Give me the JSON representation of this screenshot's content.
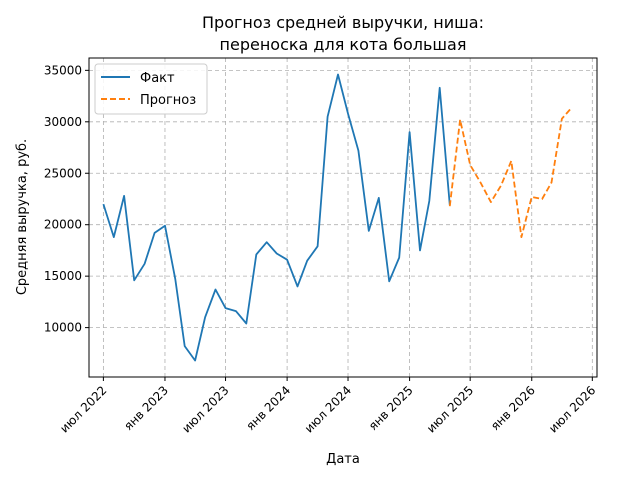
{
  "chart_data": {
    "type": "line",
    "title_lines": [
      "Прогноз средней выручки, ниша:",
      "переноска для кота большая"
    ],
    "xlabel": "Дата",
    "ylabel": "Средняя выручка, руб.",
    "ylim": [
      5200,
      36200
    ],
    "xlim": [
      "2022-05-19",
      "2026-07-15"
    ],
    "grid": true,
    "legend_position": "top-left",
    "x_ticks": [
      {
        "date": "2022-07-01",
        "label": "июл 2022"
      },
      {
        "date": "2023-01-01",
        "label": "янв 2023"
      },
      {
        "date": "2023-07-01",
        "label": "июл 2023"
      },
      {
        "date": "2024-01-01",
        "label": "янв 2024"
      },
      {
        "date": "2024-07-01",
        "label": "июл 2024"
      },
      {
        "date": "2025-01-01",
        "label": "янв 2025"
      },
      {
        "date": "2025-07-01",
        "label": "июл 2025"
      },
      {
        "date": "2026-01-01",
        "label": "янв 2026"
      },
      {
        "date": "2026-07-01",
        "label": "июл 2026"
      }
    ],
    "y_ticks": [
      {
        "value": 10000,
        "label": "10000"
      },
      {
        "value": 15000,
        "label": "15000"
      },
      {
        "value": 20000,
        "label": "20000"
      },
      {
        "value": 25000,
        "label": "25000"
      },
      {
        "value": 30000,
        "label": "30000"
      },
      {
        "value": 35000,
        "label": "35000"
      }
    ],
    "series": [
      {
        "name": "Факт",
        "color": "#1f77b4",
        "style": "solid",
        "points": [
          {
            "x": "2022-07-01",
            "y": 22000
          },
          {
            "x": "2022-08-01",
            "y": 18800
          },
          {
            "x": "2022-09-01",
            "y": 22800
          },
          {
            "x": "2022-10-01",
            "y": 14600
          },
          {
            "x": "2022-11-01",
            "y": 16200
          },
          {
            "x": "2022-12-01",
            "y": 19200
          },
          {
            "x": "2023-01-01",
            "y": 19900
          },
          {
            "x": "2023-02-01",
            "y": 14700
          },
          {
            "x": "2023-03-01",
            "y": 8200
          },
          {
            "x": "2023-04-01",
            "y": 6800
          },
          {
            "x": "2023-05-01",
            "y": 11000
          },
          {
            "x": "2023-06-01",
            "y": 13700
          },
          {
            "x": "2023-07-01",
            "y": 11900
          },
          {
            "x": "2023-08-01",
            "y": 11600
          },
          {
            "x": "2023-09-01",
            "y": 10400
          },
          {
            "x": "2023-10-01",
            "y": 17100
          },
          {
            "x": "2023-11-01",
            "y": 18300
          },
          {
            "x": "2023-12-01",
            "y": 17200
          },
          {
            "x": "2024-01-01",
            "y": 16600
          },
          {
            "x": "2024-02-01",
            "y": 14000
          },
          {
            "x": "2024-03-01",
            "y": 16500
          },
          {
            "x": "2024-04-01",
            "y": 17900
          },
          {
            "x": "2024-05-01",
            "y": 30500
          },
          {
            "x": "2024-06-01",
            "y": 34600
          },
          {
            "x": "2024-07-01",
            "y": 30800
          },
          {
            "x": "2024-08-01",
            "y": 27200
          },
          {
            "x": "2024-09-01",
            "y": 19400
          },
          {
            "x": "2024-10-01",
            "y": 22600
          },
          {
            "x": "2024-11-01",
            "y": 14500
          },
          {
            "x": "2024-12-01",
            "y": 16800
          },
          {
            "x": "2025-01-01",
            "y": 29000
          },
          {
            "x": "2025-02-01",
            "y": 17500
          },
          {
            "x": "2025-03-01",
            "y": 22300
          },
          {
            "x": "2025-04-01",
            "y": 33300
          },
          {
            "x": "2025-05-01",
            "y": 21900
          }
        ]
      },
      {
        "name": "Прогноз",
        "color": "#ff7f0e",
        "style": "dashed",
        "points": [
          {
            "x": "2025-05-01",
            "y": 21800
          },
          {
            "x": "2025-06-01",
            "y": 30200
          },
          {
            "x": "2025-07-01",
            "y": 25800
          },
          {
            "x": "2025-08-01",
            "y": 24100
          },
          {
            "x": "2025-09-01",
            "y": 22200
          },
          {
            "x": "2025-10-01",
            "y": 23800
          },
          {
            "x": "2025-11-01",
            "y": 26200
          },
          {
            "x": "2025-12-01",
            "y": 18800
          },
          {
            "x": "2026-01-01",
            "y": 22700
          },
          {
            "x": "2026-02-01",
            "y": 22500
          },
          {
            "x": "2026-03-01",
            "y": 24100
          },
          {
            "x": "2026-04-01",
            "y": 30300
          },
          {
            "x": "2026-05-01",
            "y": 31400
          }
        ]
      }
    ]
  }
}
